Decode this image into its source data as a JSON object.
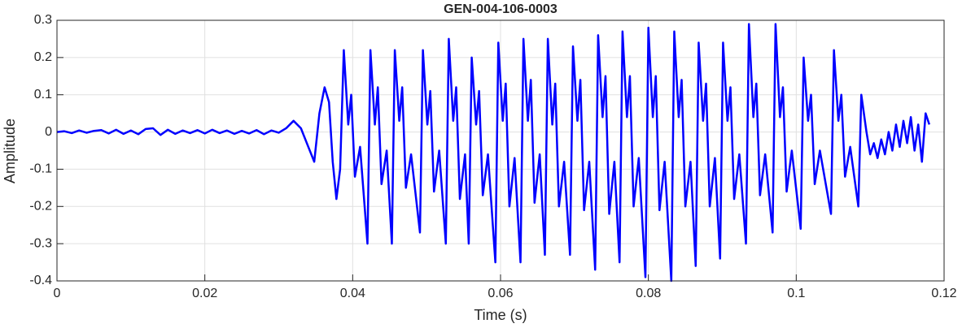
{
  "chart_data": {
    "type": "line",
    "title": "GEN-004-106-0003",
    "x_label": "Time (s)",
    "y_label": "Amplitude",
    "color": "#0000ff",
    "grid": true,
    "xlim": [
      0,
      0.12
    ],
    "ylim": [
      -0.4,
      0.3
    ],
    "xticks": [
      0,
      0.02,
      0.04,
      0.06,
      0.08,
      0.1,
      0.12
    ],
    "yticks": [
      -0.4,
      -0.3,
      -0.2,
      -0.1,
      0,
      0.1,
      0.2,
      0.3
    ],
    "x": [
      0,
      0.001,
      0.002,
      0.003,
      0.004,
      0.005,
      0.006,
      0.007,
      0.008,
      0.009,
      0.01,
      0.011,
      0.012,
      0.013,
      0.014,
      0.015,
      0.016,
      0.017,
      0.018,
      0.019,
      0.02,
      0.021,
      0.022,
      0.023,
      0.024,
      0.025,
      0.026,
      0.027,
      0.028,
      0.029,
      0.03,
      0.031,
      0.032,
      0.033,
      0.034,
      0.0348,
      0.0355,
      0.0362,
      0.0368,
      0.0373,
      0.0378,
      0.0383,
      0.0388,
      0.0394,
      0.0398,
      0.0403,
      0.041,
      0.042,
      0.0424,
      0.043,
      0.0434,
      0.0439,
      0.0446,
      0.0453,
      0.0457,
      0.0463,
      0.0467,
      0.0472,
      0.0479,
      0.0491,
      0.0495,
      0.0501,
      0.0505,
      0.051,
      0.0517,
      0.0526,
      0.053,
      0.0536,
      0.054,
      0.0545,
      0.0552,
      0.0557,
      0.0561,
      0.0567,
      0.0571,
      0.0576,
      0.0583,
      0.0593,
      0.0597,
      0.0603,
      0.0607,
      0.0612,
      0.0619,
      0.0627,
      0.0631,
      0.0637,
      0.0641,
      0.0646,
      0.0653,
      0.066,
      0.0664,
      0.067,
      0.0674,
      0.0679,
      0.0686,
      0.0694,
      0.0698,
      0.0704,
      0.0708,
      0.0713,
      0.072,
      0.0728,
      0.0732,
      0.0738,
      0.0742,
      0.0747,
      0.0754,
      0.0761,
      0.0765,
      0.0771,
      0.0775,
      0.078,
      0.0787,
      0.0796,
      0.08,
      0.0806,
      0.081,
      0.0815,
      0.0822,
      0.0831,
      0.0835,
      0.0841,
      0.0845,
      0.085,
      0.0857,
      0.0864,
      0.0868,
      0.0874,
      0.0878,
      0.0883,
      0.089,
      0.0897,
      0.0901,
      0.0907,
      0.0911,
      0.0916,
      0.0923,
      0.0932,
      0.0936,
      0.0942,
      0.0946,
      0.0951,
      0.0958,
      0.0968,
      0.0972,
      0.0978,
      0.0982,
      0.0987,
      0.0994,
      0.1006,
      0.101,
      0.1016,
      0.102,
      0.1025,
      0.1032,
      0.1047,
      0.1051,
      0.1057,
      0.1061,
      0.1066,
      0.1073,
      0.1084,
      0.1088,
      0.1095,
      0.11,
      0.1105,
      0.111,
      0.1115,
      0.112,
      0.1125,
      0.113,
      0.1135,
      0.114,
      0.1145,
      0.115,
      0.1155,
      0.116,
      0.1165,
      0.117,
      0.1175,
      0.118
    ],
    "values": [
      0,
      0.002,
      -0.003,
      0.004,
      -0.002,
      0.003,
      0.005,
      -0.004,
      0.006,
      -0.005,
      0.004,
      -0.006,
      0.008,
      0.01,
      -0.008,
      0.006,
      -0.005,
      0.004,
      -0.003,
      0.005,
      -0.004,
      0.006,
      -0.003,
      0.004,
      -0.005,
      0.003,
      -0.004,
      0.005,
      -0.006,
      0.004,
      -0.002,
      0.01,
      0.03,
      0.01,
      -0.04,
      -0.08,
      0.05,
      0.12,
      0.08,
      -0.08,
      -0.18,
      -0.1,
      0.22,
      0.02,
      0.1,
      -0.12,
      -0.04,
      -0.3,
      0.22,
      0.02,
      0.12,
      -0.14,
      -0.05,
      -0.3,
      0.22,
      0.03,
      0.12,
      -0.15,
      -0.06,
      -0.27,
      0.22,
      0.02,
      0.11,
      -0.16,
      -0.05,
      -0.3,
      0.25,
      0.03,
      0.12,
      -0.18,
      -0.06,
      -0.3,
      0.2,
      0.02,
      0.11,
      -0.17,
      -0.06,
      -0.35,
      0.24,
      0.03,
      0.13,
      -0.2,
      -0.07,
      -0.35,
      0.25,
      0.03,
      0.14,
      -0.19,
      -0.06,
      -0.33,
      0.25,
      0.02,
      0.13,
      -0.2,
      -0.08,
      -0.33,
      0.23,
      0.03,
      0.14,
      -0.21,
      -0.08,
      -0.37,
      0.26,
      0.04,
      0.15,
      -0.22,
      -0.08,
      -0.35,
      0.27,
      0.04,
      0.15,
      -0.2,
      -0.07,
      -0.39,
      0.28,
      0.04,
      0.15,
      -0.21,
      -0.08,
      -0.4,
      0.27,
      0.04,
      0.14,
      -0.2,
      -0.08,
      -0.36,
      0.24,
      0.03,
      0.13,
      -0.2,
      -0.07,
      -0.34,
      0.24,
      0.03,
      0.12,
      -0.18,
      -0.06,
      -0.3,
      0.29,
      0.04,
      0.13,
      -0.17,
      -0.06,
      -0.27,
      0.29,
      0.04,
      0.12,
      -0.16,
      -0.05,
      -0.26,
      0.2,
      0.03,
      0.1,
      -0.14,
      -0.05,
      -0.22,
      0.22,
      0.03,
      0.1,
      -0.12,
      -0.04,
      -0.2,
      0.1,
      0,
      -0.06,
      -0.03,
      -0.07,
      -0.02,
      -0.06,
      0,
      -0.05,
      0.02,
      -0.04,
      0.03,
      -0.03,
      0.04,
      -0.05,
      0.02,
      -0.08,
      0.05,
      0.02
    ]
  }
}
